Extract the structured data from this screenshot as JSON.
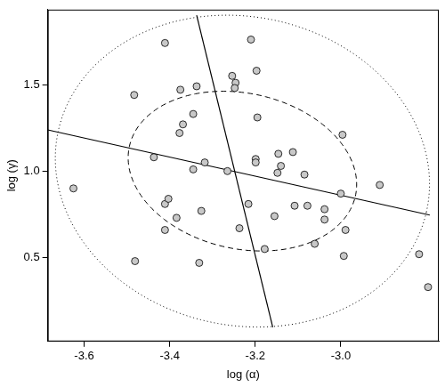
{
  "chart_data": {
    "type": "scatter",
    "x_label": "log (α)",
    "y_label": "log (γ)",
    "xlim": [
      -3.685,
      -2.771
    ],
    "ylim": [
      0.016,
      1.933
    ],
    "xticks": [
      -3.6,
      -3.4,
      -3.2,
      {
        "value": -3,
        "label": "-3.0"
      }
    ],
    "yticks": [
      0.5,
      {
        "value": 1,
        "label": "1.0"
      },
      1.5
    ],
    "grid": false,
    "color": "#c8c8c8",
    "marker": "circle",
    "x": [
      -3.625,
      -3.483,
      -3.481,
      -3.437,
      -3.411,
      -3.403,
      -3.411,
      -3.411,
      -3.384,
      -3.375,
      -3.377,
      -3.369,
      -3.345,
      -3.337,
      -3.345,
      -3.326,
      -3.318,
      -3.331,
      -3.265,
      -3.254,
      -3.246,
      -3.248,
      -3.237,
      -3.216,
      -3.21,
      -3.197,
      -3.195,
      -3.199,
      -3.199,
      -3.178,
      -3.146,
      -3.155,
      -3.148,
      -3.14,
      -3.112,
      -3.108,
      -3.085,
      -3.078,
      -3.061,
      -3.038,
      -3.038,
      -3.0,
      -2.996,
      -2.989,
      -2.993,
      -2.909,
      -2.817,
      -2.796
    ],
    "values": [
      0.9,
      1.44,
      0.48,
      1.08,
      0.81,
      0.84,
      0.66,
      1.74,
      0.73,
      1.47,
      1.22,
      1.27,
      1.33,
      1.49,
      1.01,
      0.77,
      1.05,
      0.47,
      1.0,
      1.55,
      1.51,
      1.48,
      0.67,
      0.81,
      1.76,
      1.58,
      1.31,
      1.07,
      1.05,
      0.55,
      1.1,
      0.74,
      0.99,
      1.03,
      1.11,
      0.8,
      0.98,
      0.8,
      0.58,
      0.78,
      0.72,
      0.87,
      1.21,
      0.66,
      0.51,
      0.92,
      0.52,
      0.33
    ],
    "lines": [
      {
        "x": [
          -3.685,
          -2.792
        ],
        "values": [
          1.238,
          0.746
        ],
        "color": "#000000",
        "line_style": "solid"
      },
      {
        "x": [
          -3.337,
          -3.159
        ],
        "values": [
          1.9,
          0.098
        ],
        "color": "#000000",
        "line_style": "solid"
      }
    ],
    "ellipses": [
      {
        "center": [
          -3.23,
          1.0
        ],
        "axis_1": [
          0.264,
          -0.145
        ],
        "axis_2": [
          0.0403,
          0.438
        ],
        "color": "#000000",
        "line_style": "dashed"
      },
      {
        "center": [
          -3.23,
          1.0
        ],
        "axis_1": [
          0.43,
          -0.237
        ],
        "axis_2": [
          0.08,
          0.869
        ],
        "color": "#000000",
        "line_style": "dotted"
      }
    ]
  }
}
